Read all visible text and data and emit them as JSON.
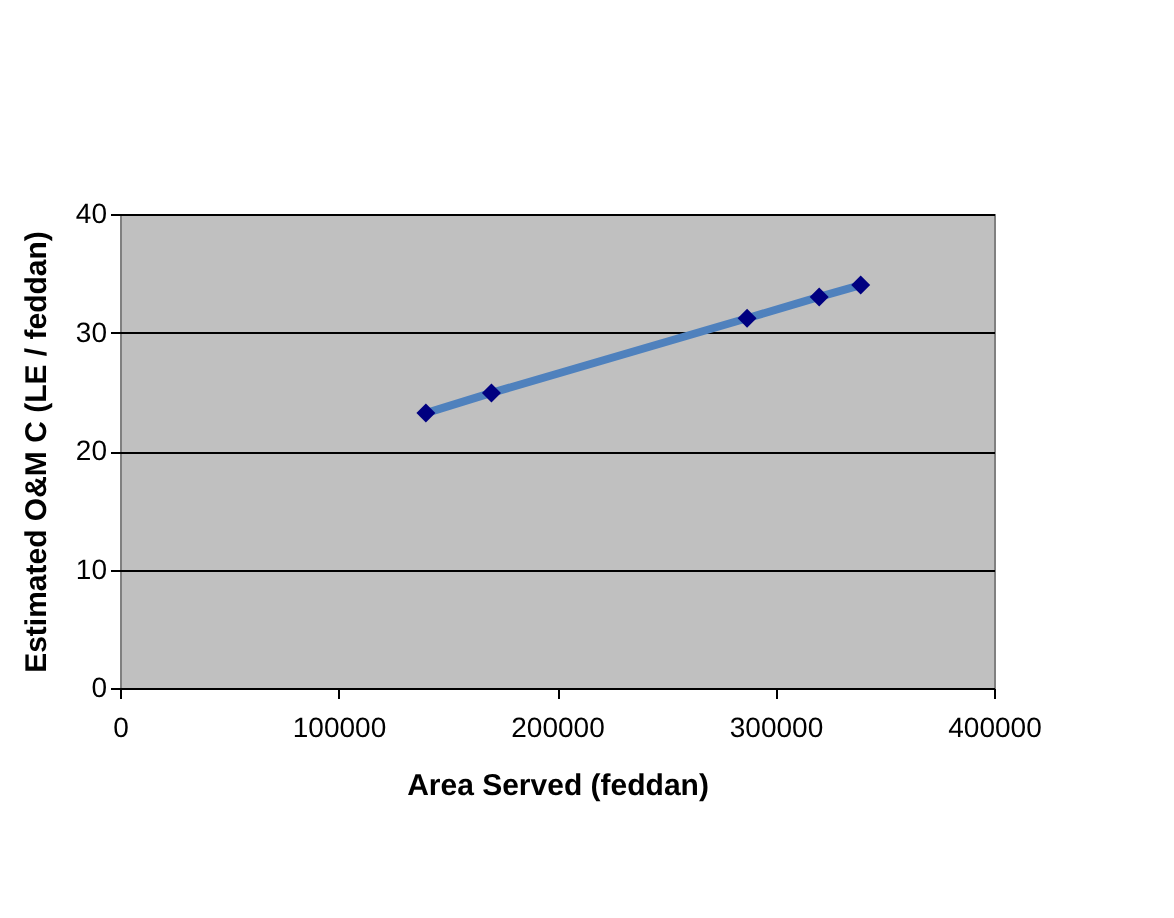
{
  "chart_data": {
    "type": "line",
    "xlabel": "Area Served (feddan)",
    "ylabel": "Estimated O&M C (LE / feddan)",
    "x": [
      140000,
      170000,
      287000,
      320000,
      339000
    ],
    "series": [
      {
        "color": "#4f81bd",
        "values": [
          23.2,
          24.9,
          31.2,
          33.0,
          34.0
        ]
      }
    ],
    "marker": "diamond",
    "line_style": "solid",
    "xlim": [
      0,
      400000
    ],
    "xticks": [
      0,
      100000,
      200000,
      300000,
      400000
    ],
    "ylim": [
      0,
      40
    ],
    "yticks": [
      0,
      10,
      20,
      30,
      40
    ],
    "grid": "y"
  }
}
